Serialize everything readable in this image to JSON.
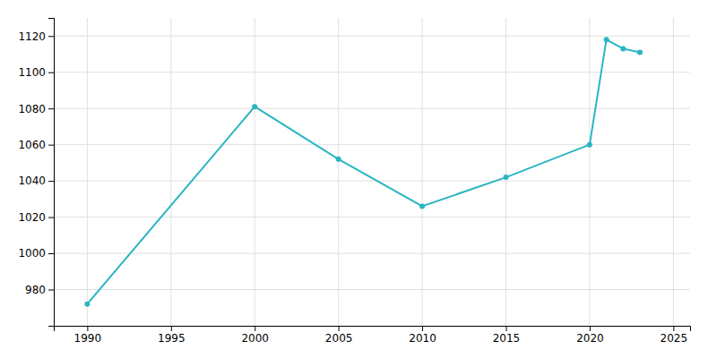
{
  "chart_data": {
    "type": "line",
    "x": [
      1990,
      2000,
      2005,
      2010,
      2015,
      2020,
      2021,
      2022,
      2023
    ],
    "values": [
      972,
      1081,
      1052,
      1026,
      1042,
      1060,
      1118,
      1113,
      1111
    ],
    "color": "#29b5c3",
    "marker": "circle",
    "xlim": [
      1988,
      2026
    ],
    "ylim": [
      960,
      1130
    ],
    "xticks": [
      1990,
      1995,
      2000,
      2005,
      2010,
      2015,
      2020,
      2025
    ],
    "yticks": [
      980,
      1000,
      1020,
      1040,
      1060,
      1080,
      1100,
      1120
    ],
    "grid": true
  }
}
